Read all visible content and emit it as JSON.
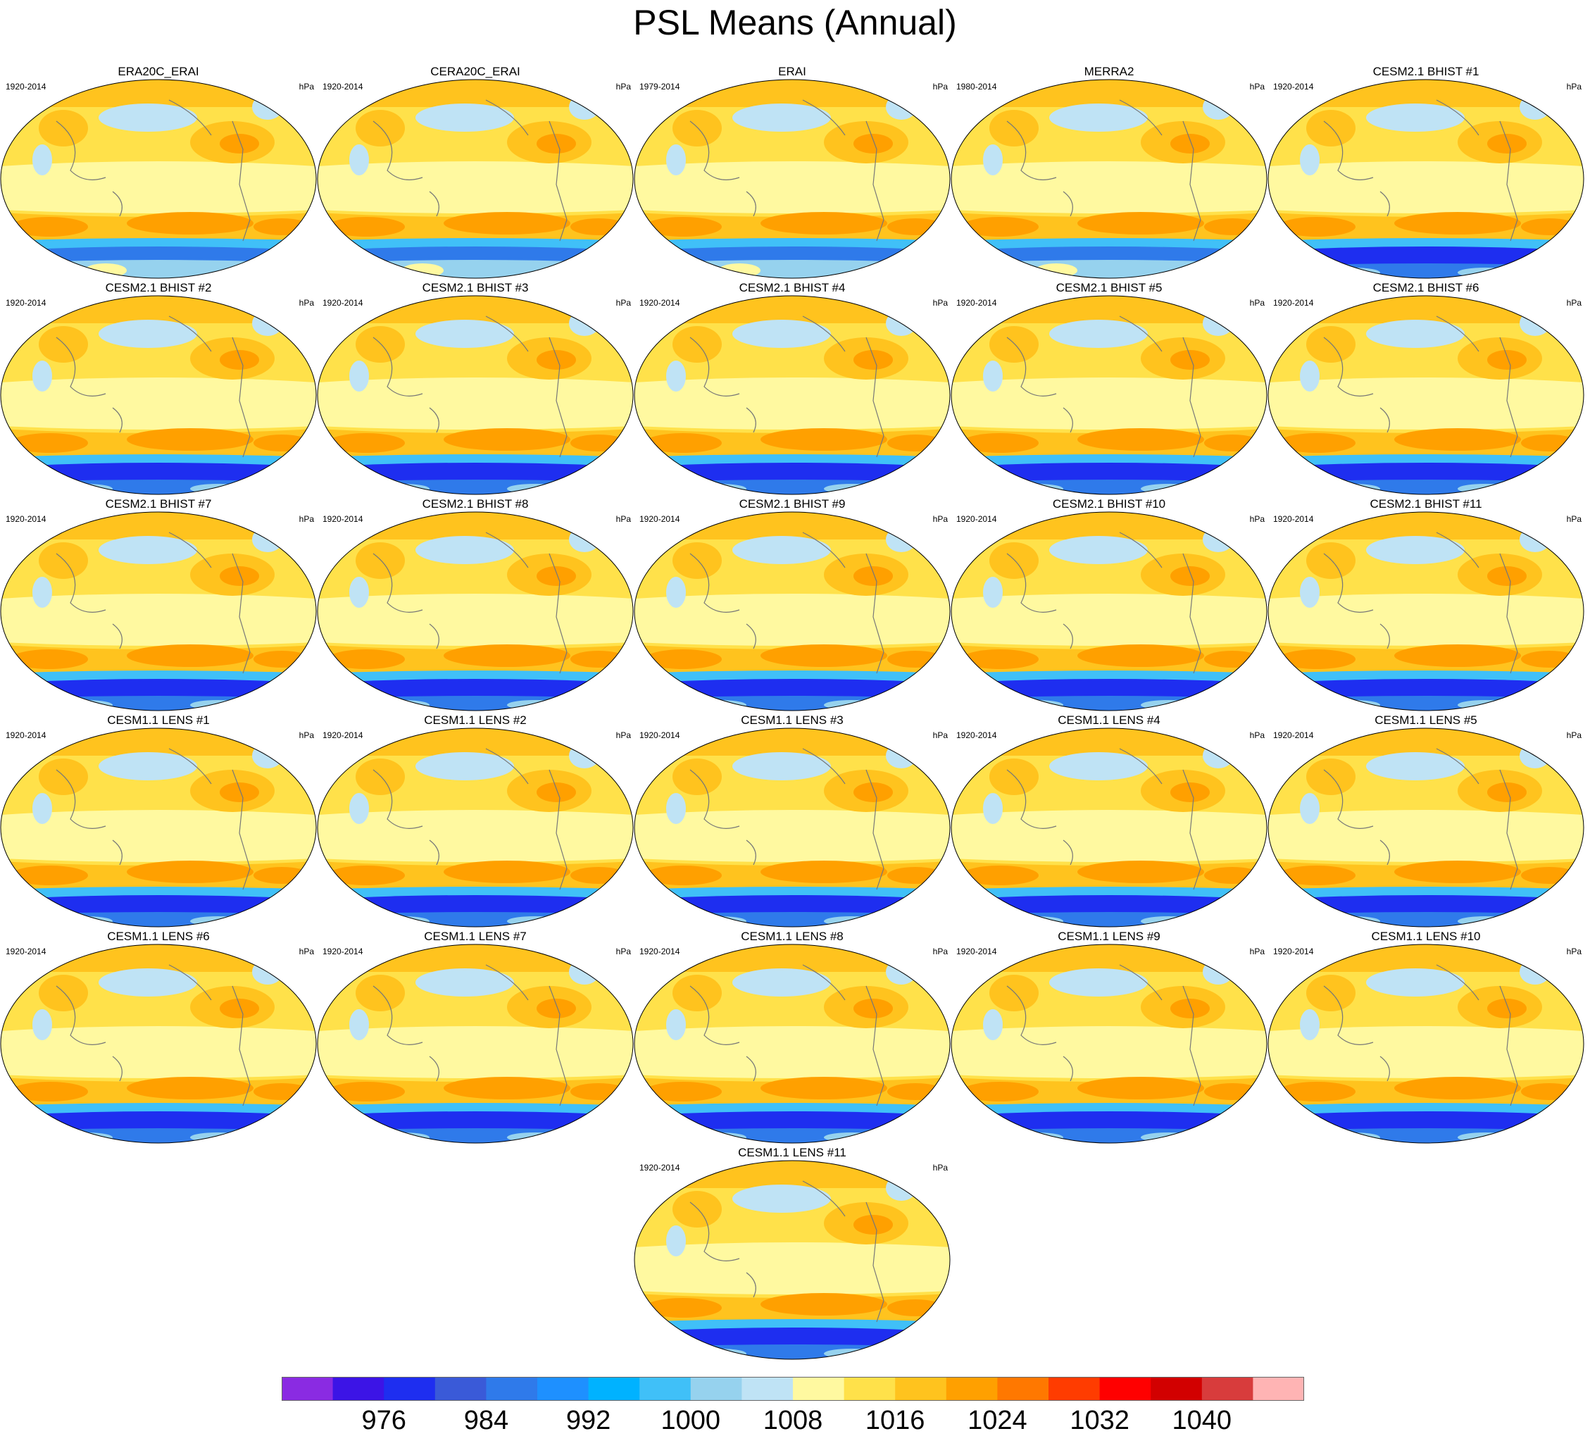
{
  "figure": {
    "title": "PSL Means (Annual)"
  },
  "panels": [
    {
      "title": "ERA20C_ERAI",
      "period": "1920-2014",
      "units": "hPa"
    },
    {
      "title": "CERA20C_ERAI",
      "period": "1920-2014",
      "units": "hPa"
    },
    {
      "title": "ERAI",
      "period": "1979-2014",
      "units": "hPa"
    },
    {
      "title": "MERRA2",
      "period": "1980-2014",
      "units": "hPa"
    },
    {
      "title": "CESM2.1 BHIST #1",
      "period": "1920-2014",
      "units": "hPa"
    },
    {
      "title": "CESM2.1 BHIST #2",
      "period": "1920-2014",
      "units": "hPa"
    },
    {
      "title": "CESM2.1 BHIST #3",
      "period": "1920-2014",
      "units": "hPa"
    },
    {
      "title": "CESM2.1 BHIST #4",
      "period": "1920-2014",
      "units": "hPa"
    },
    {
      "title": "CESM2.1 BHIST #5",
      "period": "1920-2014",
      "units": "hPa"
    },
    {
      "title": "CESM2.1 BHIST #6",
      "period": "1920-2014",
      "units": "hPa"
    },
    {
      "title": "CESM2.1 BHIST #7",
      "period": "1920-2014",
      "units": "hPa"
    },
    {
      "title": "CESM2.1 BHIST #8",
      "period": "1920-2014",
      "units": "hPa"
    },
    {
      "title": "CESM2.1 BHIST #9",
      "period": "1920-2014",
      "units": "hPa"
    },
    {
      "title": "CESM2.1 BHIST #10",
      "period": "1920-2014",
      "units": "hPa"
    },
    {
      "title": "CESM2.1 BHIST #11",
      "period": "1920-2014",
      "units": "hPa"
    },
    {
      "title": "CESM1.1 LENS #1",
      "period": "1920-2014",
      "units": "hPa"
    },
    {
      "title": "CESM1.1 LENS #2",
      "period": "1920-2014",
      "units": "hPa"
    },
    {
      "title": "CESM1.1 LENS #3",
      "period": "1920-2014",
      "units": "hPa"
    },
    {
      "title": "CESM1.1 LENS #4",
      "period": "1920-2014",
      "units": "hPa"
    },
    {
      "title": "CESM1.1 LENS #5",
      "period": "1920-2014",
      "units": "hPa"
    },
    {
      "title": "CESM1.1 LENS #6",
      "period": "1920-2014",
      "units": "hPa"
    },
    {
      "title": "CESM1.1 LENS #7",
      "period": "1920-2014",
      "units": "hPa"
    },
    {
      "title": "CESM1.1 LENS #8",
      "period": "1920-2014",
      "units": "hPa"
    },
    {
      "title": "CESM1.1 LENS #9",
      "period": "1920-2014",
      "units": "hPa"
    },
    {
      "title": "CESM1.1 LENS #10",
      "period": "1920-2014",
      "units": "hPa"
    },
    {
      "title": "CESM1.1 LENS #11",
      "period": "1920-2014",
      "units": "hPa"
    }
  ],
  "colorbar": {
    "colors": [
      "#8a2be2",
      "#3c14e6",
      "#1e2ef0",
      "#3a5ad8",
      "#2f7aea",
      "#1e90ff",
      "#00b2ff",
      "#40c0f8",
      "#96d2ee",
      "#bfe3f5",
      "#fff9a0",
      "#ffe14a",
      "#ffc31e",
      "#ffa000",
      "#ff7800",
      "#ff3c00",
      "#ff0000",
      "#d20000",
      "#d83c3c",
      "#ffb4b4"
    ],
    "labels": [
      "976",
      "984",
      "992",
      "1000",
      "1008",
      "1016",
      "1024",
      "1032",
      "1040"
    ]
  }
}
